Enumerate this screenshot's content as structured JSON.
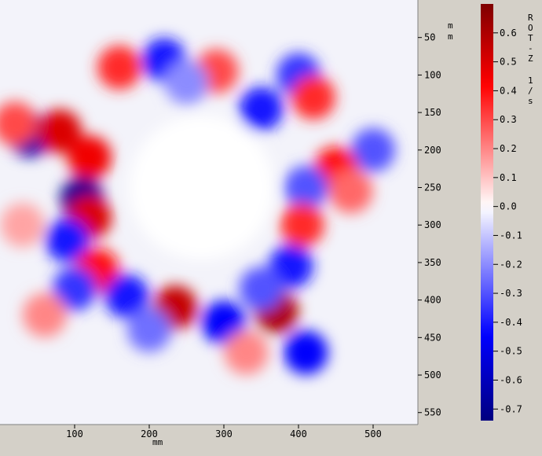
{
  "chart_data": {
    "type": "heatmap",
    "quantity": "ROT-Z",
    "units": "1/s",
    "x_unit": "mm",
    "y_unit": "mm",
    "xlim": [
      0,
      560
    ],
    "ylim": [
      566,
      0
    ],
    "x_ticks": [
      {
        "value": 100,
        "label": "100"
      },
      {
        "value": 200,
        "label": "200"
      },
      {
        "value": 300,
        "label": "300"
      },
      {
        "value": 400,
        "label": "400"
      },
      {
        "value": 500,
        "label": "500"
      }
    ],
    "y_ticks": [
      {
        "value": 50,
        "label": "50"
      },
      {
        "value": 100,
        "label": "100"
      },
      {
        "value": 150,
        "label": "150"
      },
      {
        "value": 200,
        "label": "200"
      },
      {
        "value": 250,
        "label": "250"
      },
      {
        "value": 300,
        "label": "300"
      },
      {
        "value": 350,
        "label": "350"
      },
      {
        "value": 400,
        "label": "400"
      },
      {
        "value": 450,
        "label": "450"
      },
      {
        "value": 500,
        "label": "500"
      },
      {
        "value": 550,
        "label": "550"
      }
    ],
    "colorbar": {
      "vmin": -0.74,
      "vmax": 0.7,
      "ticks": [
        {
          "value": 0.6,
          "label": "0.6"
        },
        {
          "value": 0.5,
          "label": "0.5"
        },
        {
          "value": 0.4,
          "label": "0.4"
        },
        {
          "value": 0.3,
          "label": "0.3"
        },
        {
          "value": 0.2,
          "label": "0.2"
        },
        {
          "value": 0.1,
          "label": "0.1"
        },
        {
          "value": 0.0,
          "label": "0.0"
        },
        {
          "value": -0.1,
          "label": "-0.1"
        },
        {
          "value": -0.2,
          "label": "-0.2"
        },
        {
          "value": -0.3,
          "label": "-0.3"
        },
        {
          "value": -0.4,
          "label": "-0.4"
        },
        {
          "value": -0.5,
          "label": "-0.5"
        },
        {
          "value": -0.6,
          "label": "-0.6"
        },
        {
          "value": -0.7,
          "label": "-0.7"
        }
      ],
      "title_chars": [
        "R",
        "O",
        "T",
        "-",
        "Z"
      ],
      "unit_chars": [
        "1",
        "/",
        "s"
      ],
      "colors": {
        "max": "#7f0000",
        "pos": "#ff0000",
        "zero": "#ffffff",
        "neg": "#0000ff",
        "min": "#00007f"
      }
    },
    "center": {
      "x": 270,
      "y": 250,
      "value": 0.0
    },
    "features": [
      {
        "x": 220,
        "y": 80,
        "value": -0.4
      },
      {
        "x": 290,
        "y": 95,
        "value": 0.3
      },
      {
        "x": 250,
        "y": 110,
        "value": -0.2
      },
      {
        "x": 400,
        "y": 100,
        "value": -0.35
      },
      {
        "x": 420,
        "y": 130,
        "value": 0.35
      },
      {
        "x": 350,
        "y": 145,
        "value": -0.4
      },
      {
        "x": 160,
        "y": 90,
        "value": 0.35
      },
      {
        "x": 500,
        "y": 200,
        "value": -0.3
      },
      {
        "x": 450,
        "y": 225,
        "value": 0.4
      },
      {
        "x": 410,
        "y": 250,
        "value": -0.3
      },
      {
        "x": 470,
        "y": 255,
        "value": 0.25
      },
      {
        "x": 40,
        "y": 180,
        "value": -0.65
      },
      {
        "x": 80,
        "y": 175,
        "value": 0.5
      },
      {
        "x": 120,
        "y": 210,
        "value": 0.45
      },
      {
        "x": 20,
        "y": 165,
        "value": 0.3
      },
      {
        "x": 110,
        "y": 265,
        "value": -0.7
      },
      {
        "x": 120,
        "y": 290,
        "value": 0.5
      },
      {
        "x": 90,
        "y": 320,
        "value": -0.4
      },
      {
        "x": 130,
        "y": 360,
        "value": 0.4
      },
      {
        "x": 100,
        "y": 385,
        "value": -0.35
      },
      {
        "x": 170,
        "y": 395,
        "value": -0.4
      },
      {
        "x": 235,
        "y": 410,
        "value": 0.55
      },
      {
        "x": 300,
        "y": 430,
        "value": -0.45
      },
      {
        "x": 370,
        "y": 415,
        "value": 0.6
      },
      {
        "x": 390,
        "y": 355,
        "value": -0.4
      },
      {
        "x": 405,
        "y": 300,
        "value": 0.35
      },
      {
        "x": 410,
        "y": 470,
        "value": -0.45
      },
      {
        "x": 350,
        "y": 385,
        "value": -0.3
      },
      {
        "x": 200,
        "y": 440,
        "value": -0.25
      },
      {
        "x": 60,
        "y": 420,
        "value": 0.2
      },
      {
        "x": 330,
        "y": 470,
        "value": 0.2
      },
      {
        "x": 30,
        "y": 300,
        "value": 0.15
      }
    ]
  }
}
